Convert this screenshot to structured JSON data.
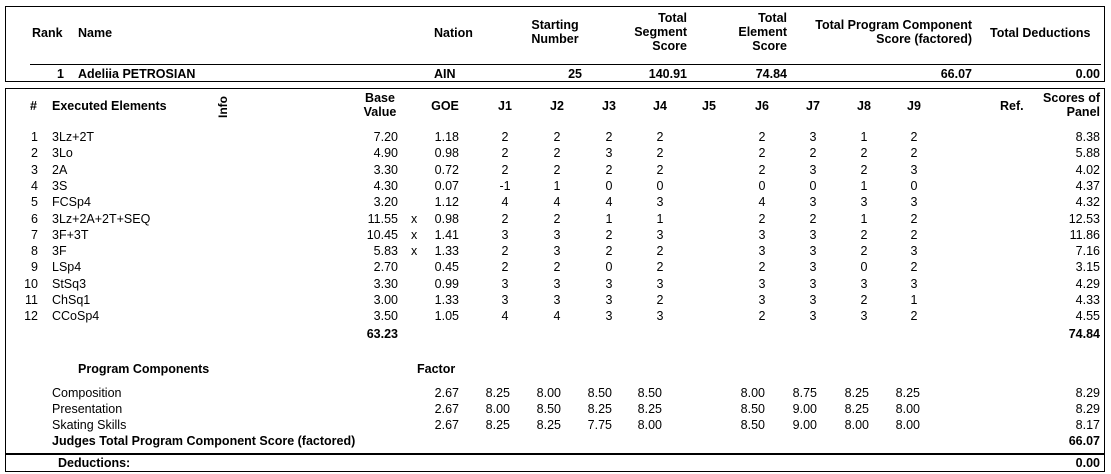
{
  "header": {
    "rank": "Rank",
    "name": "Name",
    "nation": "Nation",
    "starting_number": [
      "Starting",
      "Number"
    ],
    "total_segment_score": [
      "Total",
      "Segment",
      "Score"
    ],
    "total_element_score": [
      "Total",
      "Element",
      "Score"
    ],
    "total_pcs": [
      "Total Program Component",
      "Score (factored)"
    ],
    "total_deductions": "Total Deductions"
  },
  "skater": {
    "rank": "1",
    "name": "Adeliia PETROSIAN",
    "nation": "AIN",
    "starting_number": "25",
    "segment_score": "140.91",
    "element_score": "74.84",
    "pcs_score": "66.07",
    "deductions": "0.00"
  },
  "elements_header": {
    "num": "#",
    "executed": "Executed Elements",
    "info": "Info",
    "base_value": [
      "Base",
      "Value"
    ],
    "goe": "GOE",
    "judges": [
      "J1",
      "J2",
      "J3",
      "J4",
      "J5",
      "J6",
      "J7",
      "J8",
      "J9"
    ],
    "ref": "Ref.",
    "scores_of_panel": [
      "Scores of",
      "Panel"
    ]
  },
  "elements": [
    {
      "num": "1",
      "name": "3Lz+2T",
      "x": "",
      "bv": "7.20",
      "goe": "1.18",
      "j": [
        "2",
        "2",
        "2",
        "2",
        "",
        "2",
        "3",
        "1",
        "2"
      ],
      "score": "8.38"
    },
    {
      "num": "2",
      "name": "3Lo",
      "x": "",
      "bv": "4.90",
      "goe": "0.98",
      "j": [
        "2",
        "2",
        "3",
        "2",
        "",
        "2",
        "2",
        "2",
        "2"
      ],
      "score": "5.88"
    },
    {
      "num": "3",
      "name": "2A",
      "x": "",
      "bv": "3.30",
      "goe": "0.72",
      "j": [
        "2",
        "2",
        "2",
        "2",
        "",
        "2",
        "3",
        "2",
        "3"
      ],
      "score": "4.02"
    },
    {
      "num": "4",
      "name": "3S",
      "x": "",
      "bv": "4.30",
      "goe": "0.07",
      "j": [
        "-1",
        "1",
        "0",
        "0",
        "",
        "0",
        "0",
        "1",
        "0"
      ],
      "score": "4.37"
    },
    {
      "num": "5",
      "name": "FCSp4",
      "x": "",
      "bv": "3.20",
      "goe": "1.12",
      "j": [
        "4",
        "4",
        "4",
        "3",
        "",
        "4",
        "3",
        "3",
        "3"
      ],
      "score": "4.32"
    },
    {
      "num": "6",
      "name": "3Lz+2A+2T+SEQ",
      "x": "x",
      "bv": "11.55",
      "goe": "0.98",
      "j": [
        "2",
        "2",
        "1",
        "1",
        "",
        "2",
        "2",
        "1",
        "2"
      ],
      "score": "12.53"
    },
    {
      "num": "7",
      "name": "3F+3T",
      "x": "x",
      "bv": "10.45",
      "goe": "1.41",
      "j": [
        "3",
        "3",
        "2",
        "3",
        "",
        "3",
        "3",
        "2",
        "2"
      ],
      "score": "11.86"
    },
    {
      "num": "8",
      "name": "3F",
      "x": "x",
      "bv": "5.83",
      "goe": "1.33",
      "j": [
        "2",
        "3",
        "2",
        "2",
        "",
        "3",
        "3",
        "2",
        "3"
      ],
      "score": "7.16"
    },
    {
      "num": "9",
      "name": "LSp4",
      "x": "",
      "bv": "2.70",
      "goe": "0.45",
      "j": [
        "2",
        "2",
        "0",
        "2",
        "",
        "2",
        "3",
        "0",
        "2"
      ],
      "score": "3.15"
    },
    {
      "num": "10",
      "name": "StSq3",
      "x": "",
      "bv": "3.30",
      "goe": "0.99",
      "j": [
        "3",
        "3",
        "3",
        "3",
        "",
        "3",
        "3",
        "3",
        "3"
      ],
      "score": "4.29"
    },
    {
      "num": "11",
      "name": "ChSq1",
      "x": "",
      "bv": "3.00",
      "goe": "1.33",
      "j": [
        "3",
        "3",
        "3",
        "2",
        "",
        "3",
        "3",
        "2",
        "1"
      ],
      "score": "4.33"
    },
    {
      "num": "12",
      "name": "CCoSp4",
      "x": "",
      "bv": "3.50",
      "goe": "1.05",
      "j": [
        "4",
        "4",
        "3",
        "3",
        "",
        "2",
        "3",
        "3",
        "2"
      ],
      "score": "4.55"
    }
  ],
  "elements_total": {
    "bv": "63.23",
    "score": "74.84"
  },
  "components_header": {
    "title": "Program Components",
    "factor": "Factor"
  },
  "components": [
    {
      "name": "Composition",
      "factor": "2.67",
      "j": [
        "8.25",
        "8.00",
        "8.50",
        "8.50",
        "",
        "8.00",
        "8.75",
        "8.25",
        "8.25"
      ],
      "score": "8.29"
    },
    {
      "name": "Presentation",
      "factor": "2.67",
      "j": [
        "8.00",
        "8.50",
        "8.25",
        "8.25",
        "",
        "8.50",
        "9.00",
        "8.25",
        "8.00"
      ],
      "score": "8.29"
    },
    {
      "name": "Skating Skills",
      "factor": "2.67",
      "j": [
        "8.25",
        "8.25",
        "7.75",
        "8.00",
        "",
        "8.50",
        "9.00",
        "8.00",
        "8.00"
      ],
      "score": "8.17"
    }
  ],
  "judges_total": {
    "label": "Judges Total Program Component Score (factored)",
    "score": "66.07"
  },
  "deductions_row": {
    "label": "Deductions:",
    "score": "0.00"
  }
}
